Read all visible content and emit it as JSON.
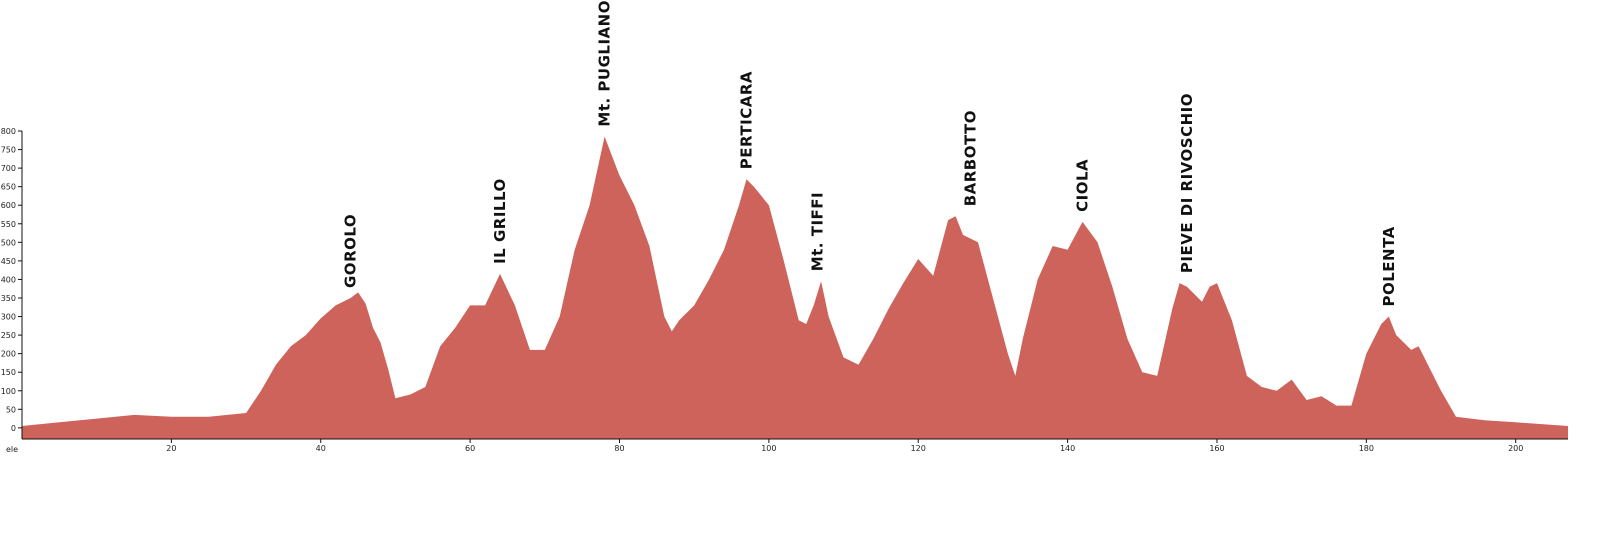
{
  "chart_data": {
    "type": "area",
    "title": "",
    "xlabel": "ele",
    "ylabel": "",
    "xlim": [
      0,
      207
    ],
    "ylim": [
      -30,
      800
    ],
    "x_ticks": [
      20,
      40,
      60,
      80,
      100,
      120,
      140,
      160,
      180,
      200
    ],
    "y_ticks": [
      0,
      50,
      100,
      150,
      200,
      250,
      300,
      350,
      400,
      450,
      500,
      550,
      600,
      650,
      700,
      750,
      800
    ],
    "fill_color": "#cd635a",
    "grid": false,
    "series": [
      {
        "x": [
          0,
          5,
          10,
          15,
          20,
          25,
          30,
          32,
          34,
          36,
          38,
          40,
          42,
          44,
          45,
          46,
          47,
          48,
          49,
          50,
          52,
          54,
          56,
          58,
          60,
          62,
          64,
          66,
          68,
          70,
          72,
          74,
          76,
          78,
          80,
          82,
          84,
          86,
          87,
          88,
          90,
          92,
          94,
          96,
          97,
          98,
          100,
          102,
          104,
          105,
          106,
          107,
          108,
          110,
          112,
          114,
          116,
          118,
          120,
          122,
          124,
          125,
          126,
          128,
          130,
          132,
          133,
          134,
          136,
          138,
          140,
          142,
          144,
          146,
          148,
          150,
          152,
          154,
          155,
          156,
          158,
          159,
          160,
          162,
          164,
          166,
          168,
          170,
          172,
          174,
          176,
          178,
          180,
          182,
          183,
          184,
          186,
          187,
          188,
          190,
          192,
          194,
          196,
          200,
          207
        ],
        "y": [
          5,
          15,
          25,
          35,
          30,
          30,
          40,
          100,
          170,
          220,
          250,
          295,
          330,
          350,
          365,
          335,
          270,
          230,
          160,
          80,
          90,
          110,
          220,
          270,
          330,
          330,
          415,
          330,
          210,
          210,
          300,
          480,
          600,
          785,
          680,
          600,
          490,
          300,
          260,
          290,
          330,
          400,
          480,
          600,
          670,
          650,
          600,
          450,
          290,
          280,
          330,
          395,
          300,
          190,
          170,
          240,
          320,
          390,
          455,
          410,
          560,
          570,
          520,
          500,
          350,
          200,
          140,
          240,
          400,
          490,
          480,
          555,
          500,
          380,
          240,
          150,
          140,
          320,
          390,
          380,
          340,
          380,
          390,
          290,
          140,
          110,
          100,
          130,
          75,
          85,
          60,
          60,
          200,
          280,
          300,
          250,
          210,
          220,
          180,
          100,
          30,
          25,
          20,
          15,
          5
        ]
      }
    ],
    "annotations": [
      {
        "text": "GOROLO",
        "x": 44,
        "y": 350
      },
      {
        "text": "IL GRILLO",
        "x": 64,
        "y": 415
      },
      {
        "text": "Mt. PUGLIANO",
        "x": 78,
        "y": 785
      },
      {
        "text": "PERTICARA",
        "x": 97,
        "y": 670
      },
      {
        "text": "Mt. TIFFI",
        "x": 106.5,
        "y": 395
      },
      {
        "text": "BARBOTTO",
        "x": 127,
        "y": 570
      },
      {
        "text": "CIOLA",
        "x": 142,
        "y": 555
      },
      {
        "text": "PIEVE DI RIVOSCHIO",
        "x": 156,
        "y": 390
      },
      {
        "text": "POLENTA",
        "x": 183,
        "y": 300
      }
    ]
  }
}
